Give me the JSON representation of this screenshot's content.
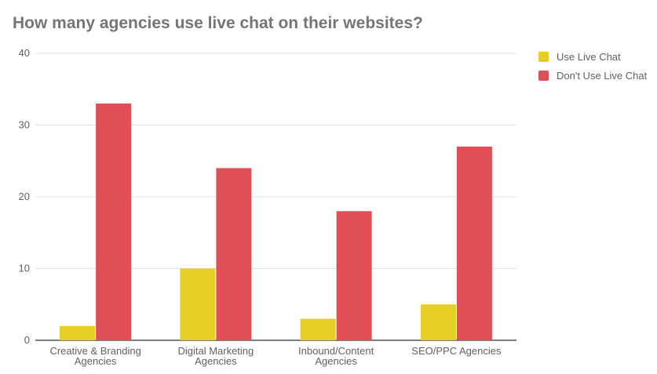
{
  "chart_data": {
    "type": "bar",
    "title": "How many agencies use live chat on their websites?",
    "xlabel": "",
    "ylabel": "",
    "ylim": [
      0,
      40
    ],
    "yticks": [
      0,
      10,
      20,
      30,
      40
    ],
    "grid": true,
    "legend_position": "right",
    "categories": [
      [
        "Creative & Branding",
        "Agencies"
      ],
      [
        "Digital Marketing",
        "Agencies"
      ],
      [
        "Inbound/Content",
        "Agencies"
      ],
      [
        "SEO/PPC Agencies"
      ]
    ],
    "series": [
      {
        "name": "Use Live Chat",
        "color": "#e6ce25",
        "values": [
          2,
          10,
          3,
          5
        ]
      },
      {
        "name": "Don't Use Live Chat",
        "color": "#e04f55",
        "values": [
          33,
          24,
          18,
          27
        ]
      }
    ]
  }
}
